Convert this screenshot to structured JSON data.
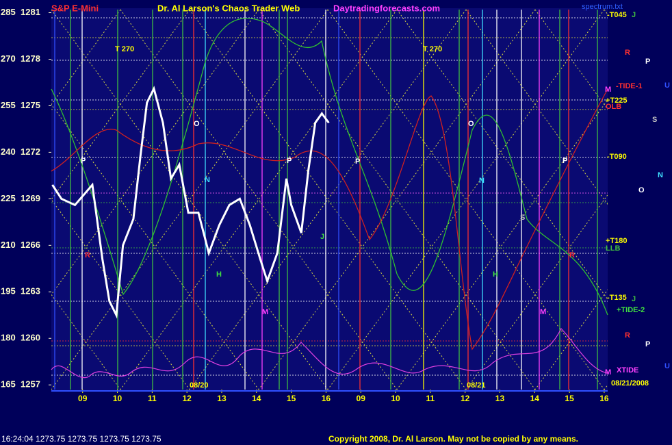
{
  "header": {
    "instrument": "S&P E-Mini",
    "title": "Dr. Al Larson's Chaos Trader Web",
    "site": "Daytradingforecasts.com",
    "file": "spectrum.txt"
  },
  "chart_data": {
    "type": "line",
    "x": [
      -0.87,
      -0.61,
      -0.22,
      0.28,
      0.57,
      0.77,
      0.97,
      1.16,
      1.46,
      1.66,
      1.85,
      2.05,
      2.31,
      2.54,
      2.78,
      3.04,
      3.33,
      3.63,
      3.93,
      4.22,
      4.52,
      4.81,
      5.11,
      5.31,
      5.6,
      5.86,
      6.0,
      6.29,
      6.49,
      6.69,
      6.88,
      7.08
    ],
    "values": [
      1269.9,
      1269.0,
      1268.6,
      1269.9,
      1265.1,
      1262.4,
      1261.5,
      1266.0,
      1267.7,
      1271.7,
      1275.2,
      1276.1,
      1273.9,
      1270.3,
      1271.2,
      1268.1,
      1268.1,
      1265.5,
      1267.3,
      1268.6,
      1269.0,
      1267.3,
      1265.1,
      1263.7,
      1265.5,
      1270.3,
      1268.6,
      1266.8,
      1270.8,
      1273.9,
      1274.5,
      1273.9
    ],
    "color": "#ffffff",
    "xlim": [
      -0.9,
      15.1
    ],
    "xticks": [
      {
        "value": 0,
        "label": "09"
      },
      {
        "value": 1,
        "label": "10"
      },
      {
        "value": 2,
        "label": "11"
      },
      {
        "value": 3,
        "label": "12"
      },
      {
        "value": 4,
        "label": "13"
      },
      {
        "value": 5,
        "label": "14"
      },
      {
        "value": 6,
        "label": "15"
      },
      {
        "value": 7,
        "label": "16"
      },
      {
        "value": 8,
        "label": "09"
      },
      {
        "value": 9,
        "label": "10"
      },
      {
        "value": 10,
        "label": "11"
      },
      {
        "value": 11,
        "label": "12"
      },
      {
        "value": 12,
        "label": "13"
      },
      {
        "value": 13,
        "label": "14"
      },
      {
        "value": 14,
        "label": "15"
      },
      {
        "value": 15,
        "label": "16"
      }
    ],
    "ylim": [
      1256.7,
      1281.2
    ],
    "yticks": [
      1257,
      1260,
      1263,
      1266,
      1269,
      1272,
      1275,
      1278,
      1281
    ],
    "y2lim": [
      163.5,
      286
    ],
    "y2ticks": [
      165,
      180,
      195,
      210,
      225,
      240,
      255,
      270,
      285
    ],
    "annotations": [
      "T 270",
      "T 270",
      "-T045",
      "-TIDE-1",
      "+T225",
      "OLB",
      "-T090",
      "+T180",
      "LLB",
      "-T135",
      "+TIDE-2",
      "XTIDE",
      "08/20",
      "08/21",
      "08/21/2008",
      "P",
      "O",
      "N",
      "H",
      "R",
      "J",
      "M",
      "P",
      "P",
      "O",
      "N",
      "H",
      "S",
      "M",
      "P",
      "R",
      "M",
      "J",
      "R",
      "P",
      "U",
      "S",
      "N",
      "O",
      "J",
      "R",
      "P",
      "U",
      "M"
    ]
  },
  "footer": {
    "status": "16:24:04 1273.75 1273.75 1273.75 1273.75",
    "copyright": "Copyright 2008, Dr. Al Larson. May not be copied by any means."
  }
}
